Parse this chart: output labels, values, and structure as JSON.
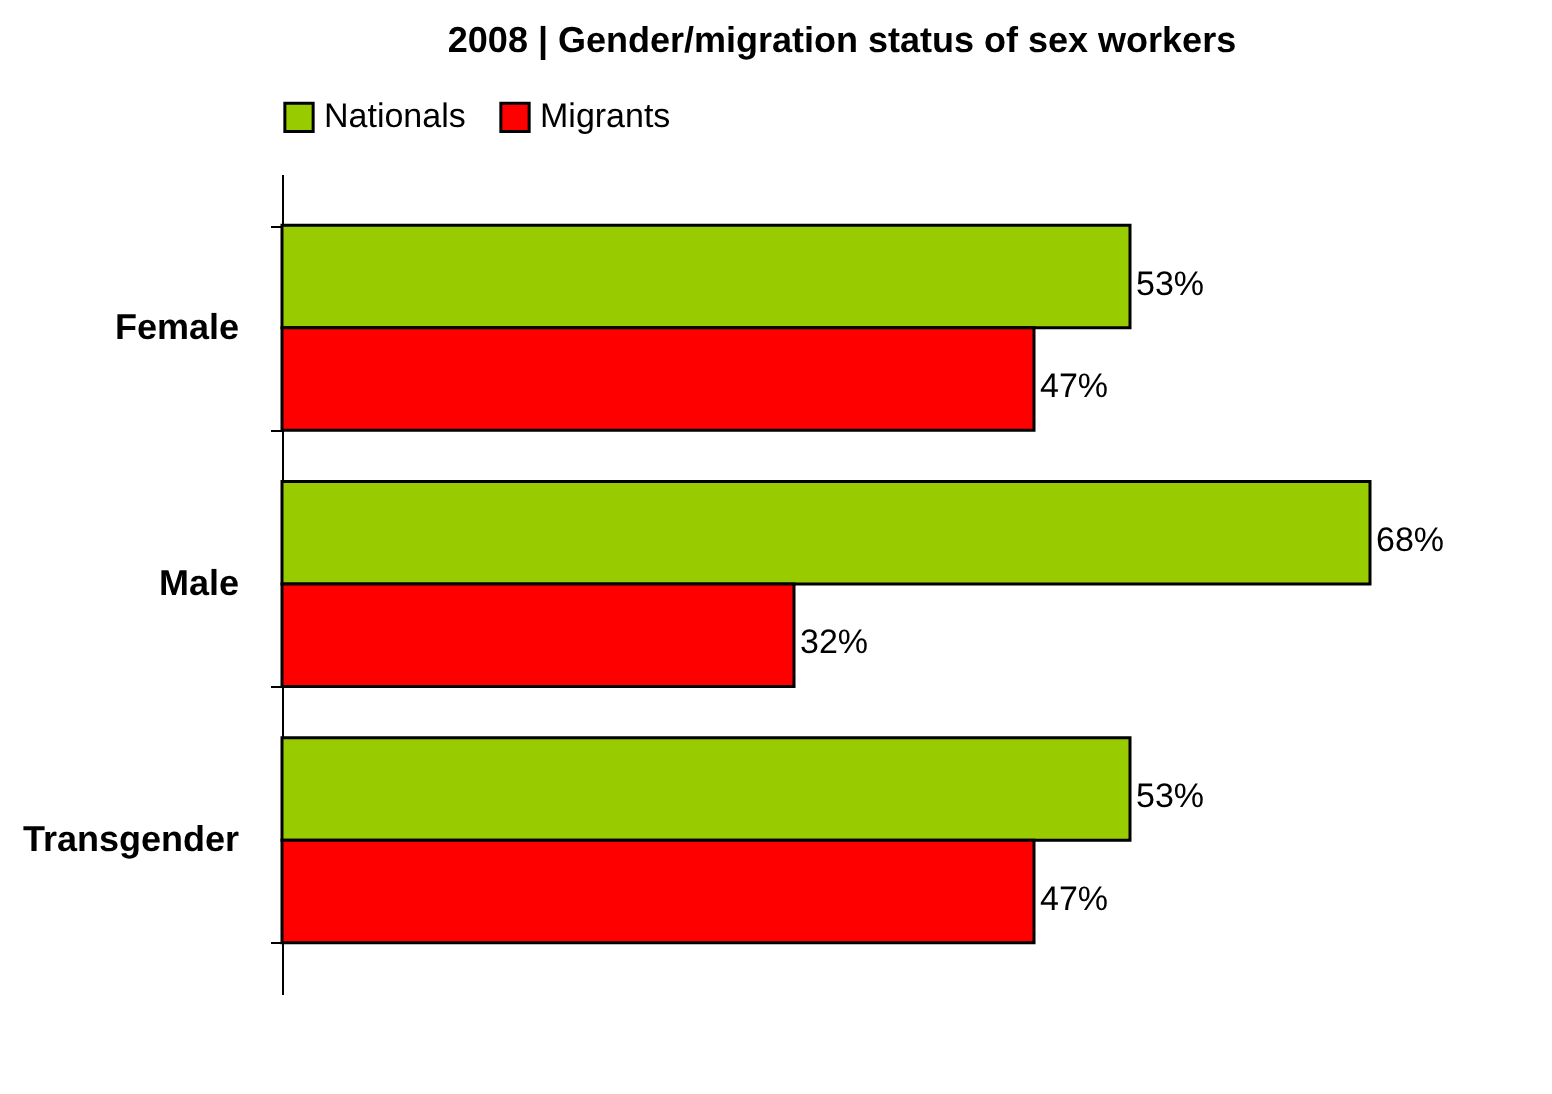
{
  "chart_data": {
    "type": "bar",
    "orientation": "horizontal",
    "title": "2008 | Gender/migration status of sex workers",
    "categories": [
      "Female",
      "Male",
      "Transgender"
    ],
    "series": [
      {
        "name": "Nationals",
        "color": "#99cc00",
        "values": [
          53,
          68,
          53
        ],
        "value_labels": [
          "53%",
          "68%",
          "53%"
        ]
      },
      {
        "name": "Migrants",
        "color": "#ff0000",
        "values": [
          47,
          32,
          47
        ],
        "value_labels": [
          "47%",
          "32%",
          "47%"
        ]
      }
    ],
    "legend": "top"
  }
}
